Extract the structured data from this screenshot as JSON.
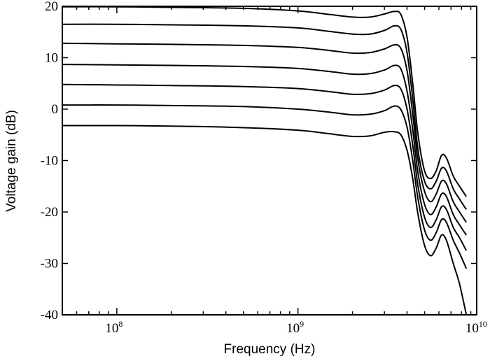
{
  "chart_data": {
    "type": "line",
    "xlabel": "Frequency (Hz)",
    "ylabel": "Voltage gain (dB)",
    "xscale": "log",
    "xlim": [
      50000000,
      9700000000
    ],
    "ylim": [
      -40,
      20
    ],
    "x_ticks": [
      {
        "value": 100000000,
        "base": "10",
        "exp": "8"
      },
      {
        "value": 1000000000,
        "base": "10",
        "exp": "9"
      },
      {
        "value": 10000000000,
        "base": "10",
        "exp": "10"
      }
    ],
    "y_ticks": [
      20,
      10,
      0,
      -10,
      -20,
      -30,
      -40
    ],
    "grid": false,
    "x": [
      50000000,
      100000000,
      200000000,
      500000000,
      1000000000,
      1500000000,
      2000000000,
      2500000000,
      3000000000,
      3400000000,
      3700000000,
      4000000000,
      4300000000,
      4600000000,
      5000000000,
      5400000000,
      5800000000,
      6200000000,
      6600000000,
      7200000000,
      7800000000,
      8500000000
    ],
    "series": [
      {
        "values": [
          19.9,
          19.9,
          19.8,
          19.6,
          19.1,
          18.4,
          17.9,
          17.9,
          18.5,
          19.0,
          18.4,
          14.0,
          5.0,
          -5.0,
          -12.0,
          -13.5,
          -12.0,
          -9.0,
          -9.5,
          -13.0,
          -15.0,
          -17.0
        ]
      },
      {
        "values": [
          16.5,
          16.5,
          16.4,
          16.2,
          15.8,
          15.1,
          14.6,
          14.6,
          15.3,
          16.2,
          15.5,
          11.0,
          2.0,
          -8.0,
          -14.0,
          -15.5,
          -14.0,
          -11.5,
          -12.0,
          -15.5,
          -17.5,
          -19.5
        ]
      },
      {
        "values": [
          12.8,
          12.7,
          12.6,
          12.4,
          12.0,
          11.4,
          10.9,
          11.0,
          11.7,
          12.5,
          11.8,
          7.5,
          -1.0,
          -10.0,
          -16.0,
          -18.0,
          -16.5,
          -14.0,
          -14.5,
          -18.0,
          -20.0,
          -22.0
        ]
      },
      {
        "values": [
          8.7,
          8.6,
          8.5,
          8.3,
          7.9,
          7.3,
          6.8,
          6.9,
          7.6,
          8.5,
          7.8,
          3.5,
          -4.0,
          -12.5,
          -18.5,
          -20.5,
          -19.0,
          -16.5,
          -17.0,
          -20.5,
          -22.5,
          -24.5
        ]
      },
      {
        "values": [
          4.8,
          4.7,
          4.6,
          4.4,
          4.0,
          3.4,
          2.9,
          3.0,
          3.7,
          4.6,
          3.9,
          0.0,
          -7.0,
          -15.0,
          -21.0,
          -23.0,
          -21.5,
          -19.0,
          -19.5,
          -23.0,
          -25.0,
          -27.5
        ]
      },
      {
        "values": [
          0.8,
          0.8,
          0.7,
          0.5,
          0.0,
          -0.6,
          -1.1,
          -1.0,
          -0.3,
          0.6,
          -0.1,
          -3.5,
          -10.0,
          -17.5,
          -23.5,
          -25.5,
          -24.0,
          -21.5,
          -22.0,
          -25.5,
          -28.0,
          -31.0
        ]
      },
      {
        "values": [
          -3.2,
          -3.2,
          -3.3,
          -3.6,
          -4.1,
          -4.8,
          -5.3,
          -5.2,
          -4.5,
          -4.4,
          -5.0,
          -8.0,
          -13.5,
          -20.5,
          -26.5,
          -28.5,
          -27.0,
          -24.5,
          -25.5,
          -30.0,
          -34.0,
          -40.0
        ]
      }
    ]
  }
}
